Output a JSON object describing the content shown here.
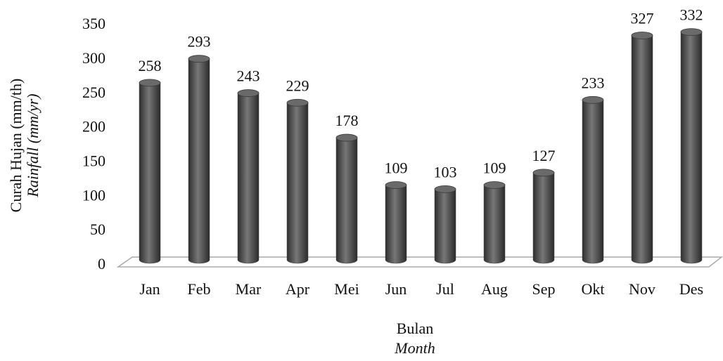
{
  "chart_data": {
    "type": "bar",
    "y_label": [
      "Curah Hujan (mm/th)",
      "Rainfall (mm/yr)"
    ],
    "x_label": [
      "Bulan",
      "Month"
    ],
    "categories": [
      "Jan",
      "Feb",
      "Mar",
      "Apr",
      "Mei",
      "Jun",
      "Jul",
      "Aug",
      "Sep",
      "Okt",
      "Nov",
      "Des"
    ],
    "values": [
      258,
      293,
      243,
      229,
      178,
      109,
      103,
      109,
      127,
      233,
      327,
      332
    ],
    "color": "#4a4a4a",
    "ylim": [
      0,
      350
    ],
    "yticks": [
      0,
      50,
      100,
      150,
      200,
      250,
      300,
      350
    ],
    "grid": false
  }
}
